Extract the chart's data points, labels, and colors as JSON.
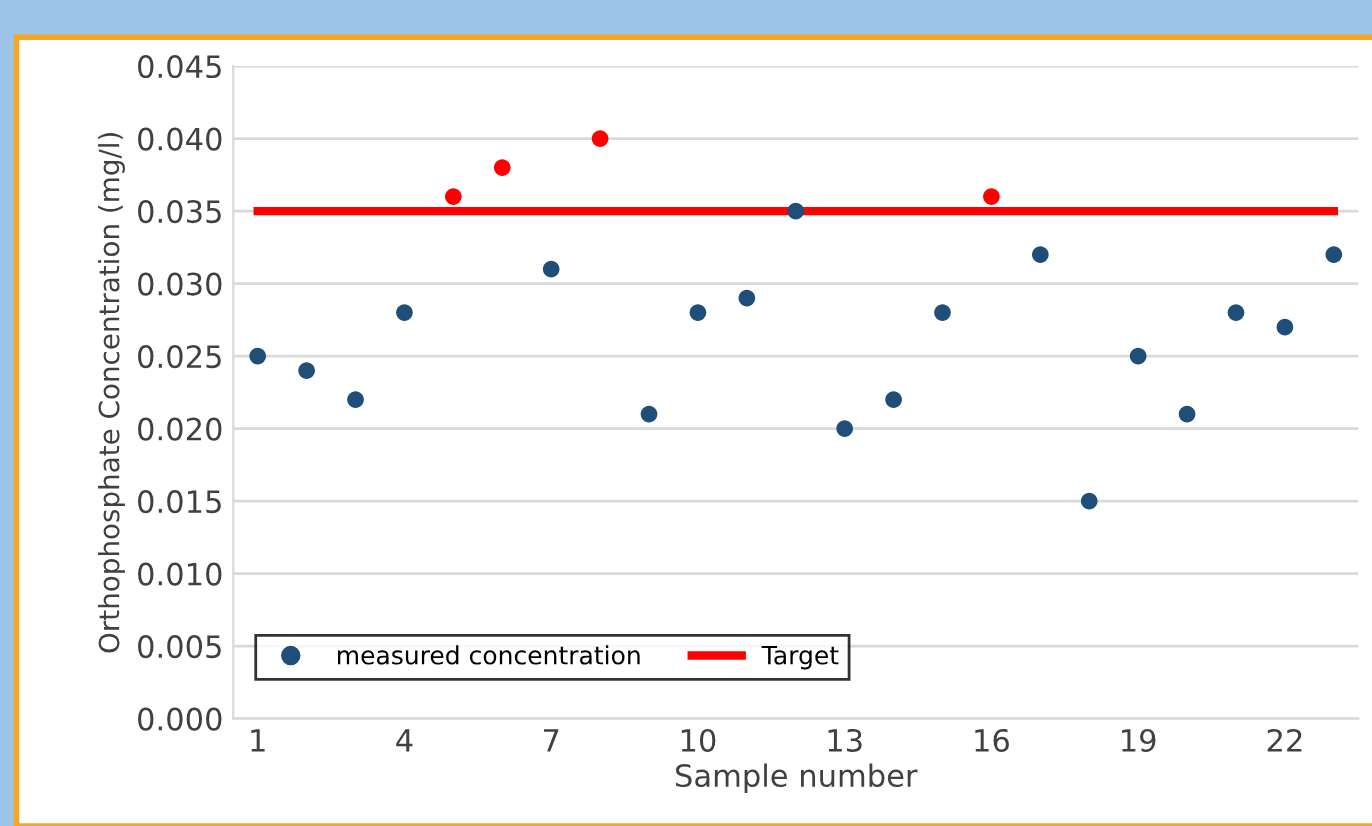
{
  "chart_data": {
    "type": "scatter",
    "xlabel": "Sample number",
    "ylabel": "Orthophosphate Concentration (mg/l)",
    "categories": [
      "1",
      null,
      null,
      "4",
      null,
      null,
      "7",
      null,
      null,
      "10",
      null,
      null,
      "13",
      null,
      null,
      "16",
      null,
      null,
      "19",
      null,
      null,
      "22",
      null
    ],
    "series": [
      {
        "name": "measured concentration",
        "color": "#1f4e79",
        "marker": "circle",
        "colors": [
          "#1f4e79",
          "#1f4e79",
          "#1f4e79",
          "#1f4e79",
          "#ff0000",
          "#ff0000",
          "#1f4e79",
          "#ff0000",
          "#1f4e79",
          "#1f4e79",
          "#1f4e79",
          "#1f4e79",
          "#1f4e79",
          "#1f4e79",
          "#1f4e79",
          "#ff0000",
          "#1f4e79",
          "#1f4e79",
          "#1f4e79",
          "#1f4e79",
          "#1f4e79",
          "#1f4e79",
          "#1f4e79"
        ],
        "values": [
          0.025,
          0.024,
          0.022,
          0.028,
          0.036,
          0.038,
          0.031,
          0.04,
          0.021,
          0.028,
          0.029,
          0.035,
          0.02,
          0.022,
          0.028,
          0.036,
          0.032,
          0.015,
          0.025,
          0.021,
          0.028,
          0.027,
          0.032
        ]
      },
      {
        "name": "Target",
        "type": "line",
        "color": "#ff0000",
        "marker": "none",
        "line_style": "solid",
        "values": [
          0.035,
          0.035,
          0.035,
          0.035,
          0.035,
          0.035,
          0.035,
          0.035,
          0.035,
          0.035,
          0.035,
          0.035,
          0.035,
          0.035,
          0.035,
          0.035,
          0.035,
          0.035,
          0.035,
          0.035,
          0.035,
          0.035,
          0.035
        ]
      }
    ],
    "ylim": [
      0,
      0.045
    ],
    "yticks": [
      {
        "value": 0,
        "label": "0.000"
      },
      0.005,
      {
        "value": 0.01,
        "label": "0.010"
      },
      0.015,
      {
        "value": 0.02,
        "label": "0.020"
      },
      0.025,
      {
        "value": 0.03,
        "label": "0.030"
      },
      0.035,
      {
        "value": 0.04,
        "label": "0.040"
      },
      0.045
    ],
    "grid": "y",
    "legend": "bottom left"
  }
}
